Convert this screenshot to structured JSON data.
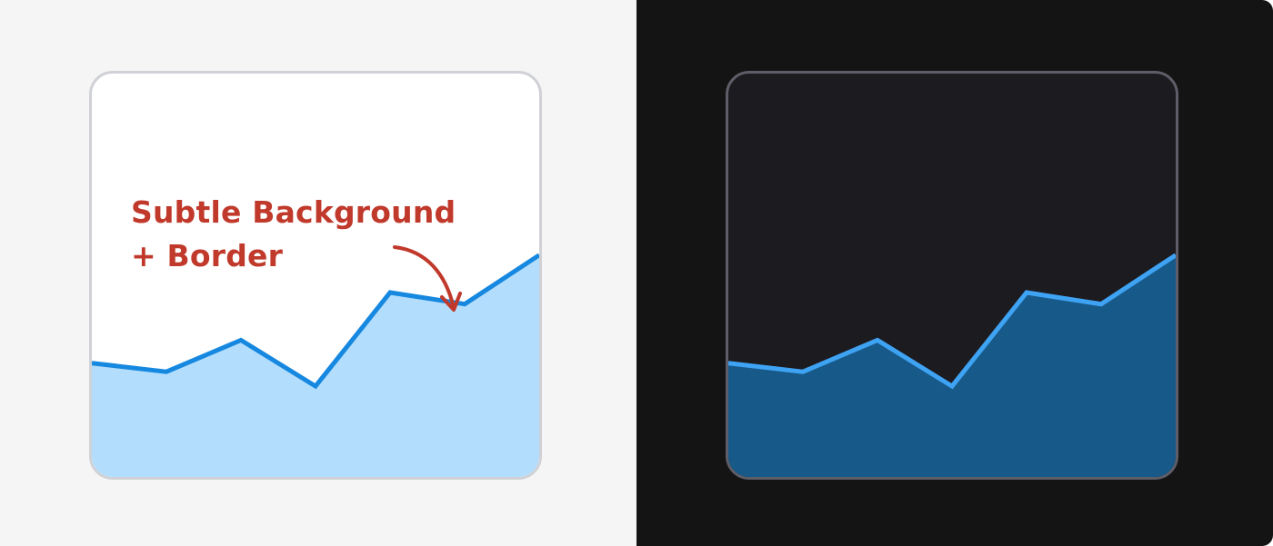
{
  "annotation": {
    "line1": "Subtle Background",
    "line2": "+ Border",
    "color": "#c0392b"
  },
  "themes": {
    "light": {
      "page_bg": "#f5f5f5",
      "card_bg": "#ffffff",
      "card_border": "#cfd1d6",
      "line_color": "#1688e0",
      "fill_color": "#b3ddfc"
    },
    "dark": {
      "page_bg": "#141414",
      "card_bg": "#1c1b20",
      "card_border": "#5e5e68",
      "line_color": "#3fa3f4",
      "fill_color": "#175a8a"
    }
  },
  "chart_data": [
    {
      "type": "area",
      "x": [
        1,
        2,
        3,
        4,
        5,
        6,
        7
      ],
      "values": [
        0.79,
        0.73,
        0.95,
        0.63,
        1.28,
        1.2,
        1.54
      ],
      "ylim": [
        0,
        2.8
      ],
      "title": "",
      "xlabel": "",
      "ylabel": "",
      "grid": false,
      "theme": "light"
    },
    {
      "type": "area",
      "x": [
        1,
        2,
        3,
        4,
        5,
        6,
        7
      ],
      "values": [
        0.79,
        0.73,
        0.95,
        0.63,
        1.28,
        1.2,
        1.54
      ],
      "ylim": [
        0,
        2.8
      ],
      "title": "",
      "xlabel": "",
      "ylabel": "",
      "grid": false,
      "theme": "dark"
    }
  ]
}
